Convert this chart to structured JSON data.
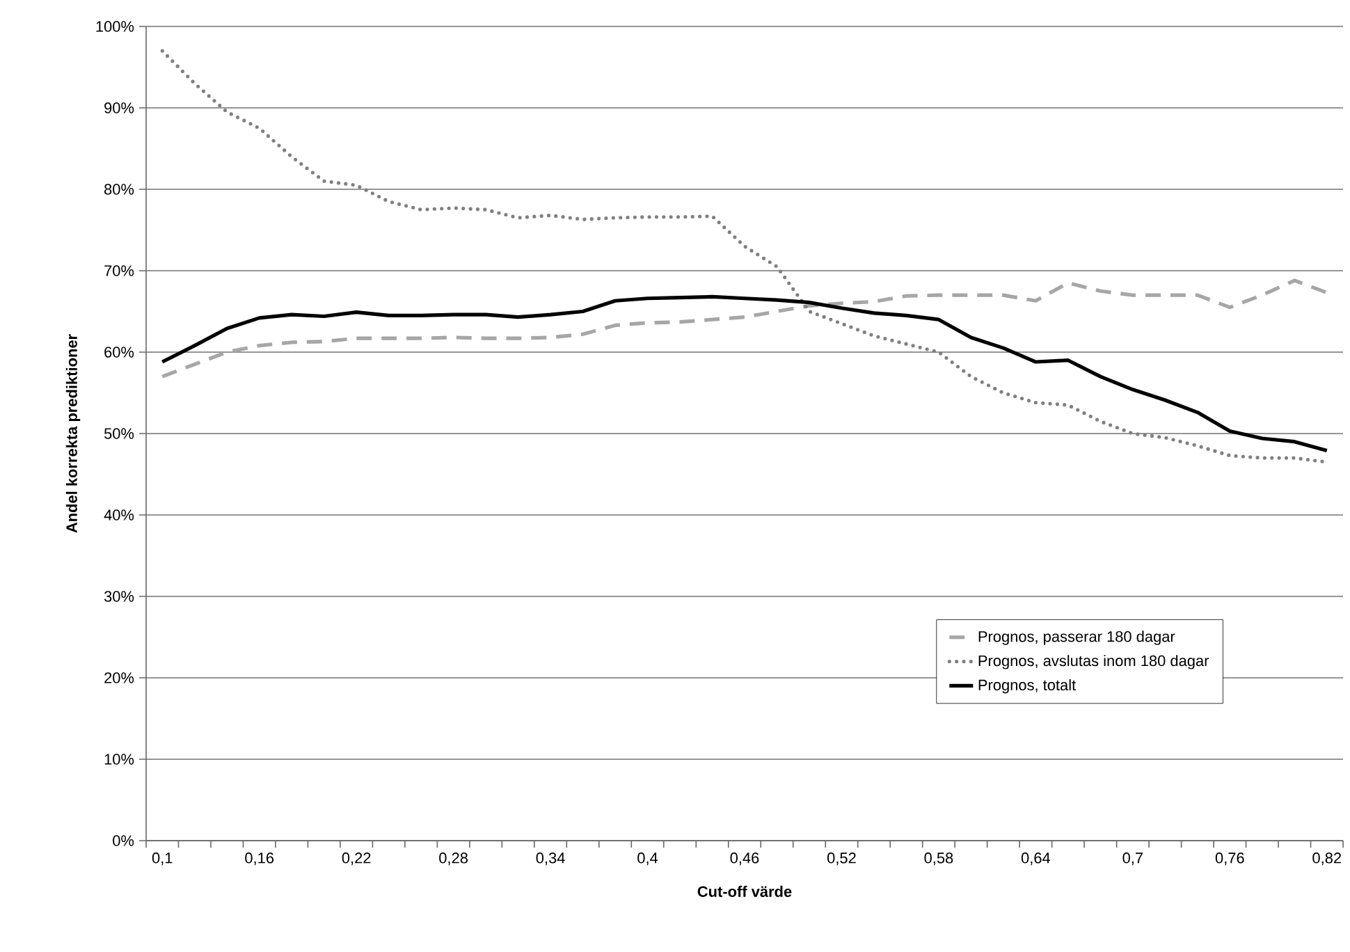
{
  "chart_data": {
    "type": "line",
    "xlabel": "Cut-off värde",
    "ylabel": "Andel korrekta prediktioner",
    "categories": [
      "0,1",
      null,
      null,
      "0,16",
      null,
      null,
      "0,22",
      null,
      null,
      "0,28",
      null,
      null,
      "0,34",
      null,
      null,
      "0,4",
      null,
      null,
      "0,46",
      null,
      null,
      "0,52",
      null,
      null,
      "0,58",
      null,
      null,
      "0,64",
      null,
      null,
      "0,7",
      null,
      null,
      "0,76",
      null,
      null,
      "0,82"
    ],
    "series": [
      {
        "name": "Prognos, passerar 180 dagar",
        "color": "#a6a6a6",
        "line_style": "dashed",
        "values": [
          57,
          58.5,
          60,
          60.8,
          61.2,
          61.3,
          61.7,
          61.7,
          61.7,
          61.8,
          61.7,
          61.7,
          61.8,
          62.2,
          63.3,
          63.6,
          63.7,
          64,
          64.3,
          65,
          65.7,
          66,
          66.2,
          66.9,
          67,
          67,
          67,
          66.3,
          68.5,
          67.5,
          67,
          67,
          67,
          65.5,
          67,
          68.8,
          67.3
        ]
      },
      {
        "name": "Prognos, avslutas inom 180 dagar",
        "color": "#808080",
        "line_style": "dotted",
        "values": [
          97,
          93,
          89.5,
          87.5,
          84,
          81,
          80.5,
          78.5,
          77.5,
          77.7,
          77.5,
          76.5,
          76.8,
          76.3,
          76.5,
          76.6,
          76.6,
          76.7,
          73,
          70.5,
          65,
          63.5,
          62,
          61,
          60,
          57,
          55,
          53.8,
          53.5,
          51.5,
          50,
          49.5,
          48.5,
          47.3,
          47,
          47,
          46.5
        ]
      },
      {
        "name": "Prognos, totalt",
        "color": "#000000",
        "line_style": "solid",
        "values": [
          58.8,
          60.8,
          62.9,
          64.2,
          64.6,
          64.4,
          64.9,
          64.5,
          64.5,
          64.6,
          64.6,
          64.3,
          64.6,
          65,
          66.3,
          66.6,
          66.7,
          66.8,
          66.6,
          66.4,
          66.1,
          65.4,
          64.8,
          64.5,
          64,
          61.8,
          60.5,
          58.8,
          59,
          57,
          55.4,
          54.1,
          52.6,
          50.3,
          49.4,
          49,
          47.9
        ]
      }
    ],
    "ylim": [
      0,
      100
    ],
    "yticks": [
      {
        "value": 0,
        "label": "0%"
      },
      {
        "value": 10,
        "label": "10%"
      },
      {
        "value": 20,
        "label": "20%"
      },
      {
        "value": 30,
        "label": "30%"
      },
      {
        "value": 40,
        "label": "40%"
      },
      {
        "value": 50,
        "label": "50%"
      },
      {
        "value": 60,
        "label": "60%"
      },
      {
        "value": 70,
        "label": "70%"
      },
      {
        "value": 80,
        "label": "80%"
      },
      {
        "value": 90,
        "label": "90%"
      },
      {
        "value": 100,
        "label": "100%"
      }
    ],
    "grid": "y",
    "legend": "bottom right",
    "marker": "none"
  }
}
